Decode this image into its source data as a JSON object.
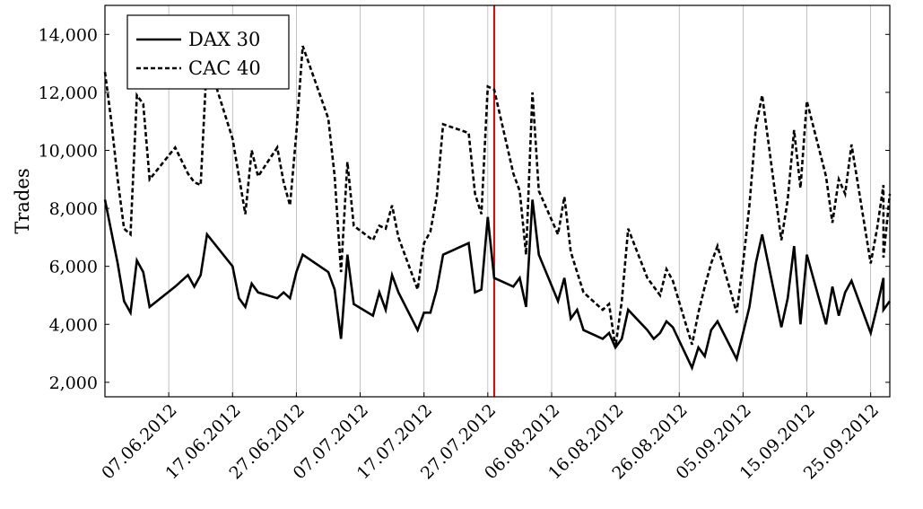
{
  "colors": {
    "dax": "#000000",
    "cac": "#000000",
    "marker": "#e00000",
    "grid": "#b3b3b3"
  },
  "chart_data": {
    "type": "line",
    "title": "",
    "xlabel": "",
    "ylabel": "Trades",
    "ylim": [
      1500,
      15000
    ],
    "yticks": [
      2000,
      4000,
      6000,
      8000,
      10000,
      12000,
      14000
    ],
    "ytick_labels": [
      "2,000",
      "4,000",
      "6,000",
      "8,000",
      "10,000",
      "12,000",
      "14,000"
    ],
    "xlim": [
      "2012-05-28",
      "2012-09-28"
    ],
    "xticks": [
      "2012-06-07",
      "2012-06-17",
      "2012-06-27",
      "2012-07-07",
      "2012-07-17",
      "2012-07-27",
      "2012-08-06",
      "2012-08-16",
      "2012-08-26",
      "2012-09-05",
      "2012-09-15",
      "2012-09-25"
    ],
    "xtick_labels": [
      "07.06.2012",
      "17.06.2012",
      "27.06.2012",
      "07.07.2012",
      "17.07.2012",
      "27.07.2012",
      "06.08.2012",
      "16.08.2012",
      "26.08.2012",
      "05.09.2012",
      "15.09.2012",
      "25.09.2012"
    ],
    "grid": "vertical",
    "legend_position": "top-left",
    "marker_line": {
      "x": "2012-07-28"
    },
    "series": [
      {
        "name": "DAX 30",
        "style": "solid",
        "points": [
          [
            "2012-05-28",
            8300
          ],
          [
            "2012-05-29",
            7200
          ],
          [
            "2012-05-30",
            6100
          ],
          [
            "2012-05-31",
            4800
          ],
          [
            "2012-06-01",
            4400
          ],
          [
            "2012-06-02",
            6200
          ],
          [
            "2012-06-03",
            5800
          ],
          [
            "2012-06-04",
            4600
          ],
          [
            "2012-06-08",
            5300
          ],
          [
            "2012-06-10",
            5700
          ],
          [
            "2012-06-11",
            5300
          ],
          [
            "2012-06-12",
            5700
          ],
          [
            "2012-06-13",
            7100
          ],
          [
            "2012-06-17",
            6000
          ],
          [
            "2012-06-18",
            4900
          ],
          [
            "2012-06-19",
            4600
          ],
          [
            "2012-06-20",
            5400
          ],
          [
            "2012-06-21",
            5100
          ],
          [
            "2012-06-24",
            4900
          ],
          [
            "2012-06-25",
            5100
          ],
          [
            "2012-06-26",
            4900
          ],
          [
            "2012-06-27",
            5800
          ],
          [
            "2012-06-28",
            6400
          ],
          [
            "2012-07-02",
            5800
          ],
          [
            "2012-07-03",
            5200
          ],
          [
            "2012-07-04",
            3500
          ],
          [
            "2012-07-05",
            6400
          ],
          [
            "2012-07-06",
            4700
          ],
          [
            "2012-07-09",
            4300
          ],
          [
            "2012-07-10",
            5100
          ],
          [
            "2012-07-11",
            4500
          ],
          [
            "2012-07-12",
            5700
          ],
          [
            "2012-07-13",
            5100
          ],
          [
            "2012-07-16",
            3800
          ],
          [
            "2012-07-17",
            4400
          ],
          [
            "2012-07-18",
            4400
          ],
          [
            "2012-07-19",
            5200
          ],
          [
            "2012-07-20",
            6400
          ],
          [
            "2012-07-24",
            6800
          ],
          [
            "2012-07-25",
            5100
          ],
          [
            "2012-07-26",
            5200
          ],
          [
            "2012-07-27",
            7700
          ],
          [
            "2012-07-28",
            5600
          ],
          [
            "2012-07-31",
            5300
          ],
          [
            "2012-08-01",
            5600
          ],
          [
            "2012-08-02",
            4600
          ],
          [
            "2012-08-03",
            8300
          ],
          [
            "2012-08-04",
            6400
          ],
          [
            "2012-08-07",
            4800
          ],
          [
            "2012-08-08",
            5600
          ],
          [
            "2012-08-09",
            4200
          ],
          [
            "2012-08-10",
            4500
          ],
          [
            "2012-08-11",
            3800
          ],
          [
            "2012-08-14",
            3500
          ],
          [
            "2012-08-15",
            3700
          ],
          [
            "2012-08-16",
            3200
          ],
          [
            "2012-08-17",
            3500
          ],
          [
            "2012-08-18",
            4500
          ],
          [
            "2012-08-21",
            3800
          ],
          [
            "2012-08-22",
            3500
          ],
          [
            "2012-08-23",
            3700
          ],
          [
            "2012-08-24",
            4100
          ],
          [
            "2012-08-25",
            3900
          ],
          [
            "2012-08-28",
            2500
          ],
          [
            "2012-08-29",
            3200
          ],
          [
            "2012-08-30",
            2900
          ],
          [
            "2012-08-31",
            3800
          ],
          [
            "2012-09-01",
            4100
          ],
          [
            "2012-09-04",
            2800
          ],
          [
            "2012-09-05",
            3700
          ],
          [
            "2012-09-06",
            4600
          ],
          [
            "2012-09-07",
            6100
          ],
          [
            "2012-09-08",
            7100
          ],
          [
            "2012-09-11",
            3900
          ],
          [
            "2012-09-12",
            4900
          ],
          [
            "2012-09-13",
            6700
          ],
          [
            "2012-09-14",
            4000
          ],
          [
            "2012-09-15",
            6400
          ],
          [
            "2012-09-18",
            4000
          ],
          [
            "2012-09-19",
            5300
          ],
          [
            "2012-09-20",
            4300
          ],
          [
            "2012-09-21",
            5100
          ],
          [
            "2012-09-22",
            5500
          ],
          [
            "2012-09-25",
            3700
          ],
          [
            "2012-09-26",
            4600
          ],
          [
            "2012-09-27",
            5600
          ],
          [
            "2012-09-27",
            4500
          ],
          [
            "2012-09-28",
            4800
          ]
        ]
      },
      {
        "name": "CAC 40",
        "style": "dashed",
        "points": [
          [
            "2012-05-28",
            12700
          ],
          [
            "2012-05-29",
            11000
          ],
          [
            "2012-05-30",
            9000
          ],
          [
            "2012-05-31",
            7300
          ],
          [
            "2012-06-01",
            7100
          ],
          [
            "2012-06-02",
            11900
          ],
          [
            "2012-06-03",
            11600
          ],
          [
            "2012-06-04",
            9000
          ],
          [
            "2012-06-08",
            10100
          ],
          [
            "2012-06-10",
            9200
          ],
          [
            "2012-06-11",
            8900
          ],
          [
            "2012-06-12",
            8800
          ],
          [
            "2012-06-13",
            13200
          ],
          [
            "2012-06-17",
            10400
          ],
          [
            "2012-06-18",
            9100
          ],
          [
            "2012-06-19",
            7800
          ],
          [
            "2012-06-20",
            10000
          ],
          [
            "2012-06-21",
            9100
          ],
          [
            "2012-06-24",
            10100
          ],
          [
            "2012-06-25",
            8900
          ],
          [
            "2012-06-26",
            8100
          ],
          [
            "2012-06-27",
            10600
          ],
          [
            "2012-06-28",
            13600
          ],
          [
            "2012-07-02",
            11100
          ],
          [
            "2012-07-03",
            9100
          ],
          [
            "2012-07-04",
            5800
          ],
          [
            "2012-07-05",
            9600
          ],
          [
            "2012-07-06",
            7400
          ],
          [
            "2012-07-09",
            6900
          ],
          [
            "2012-07-10",
            7400
          ],
          [
            "2012-07-11",
            7300
          ],
          [
            "2012-07-12",
            8100
          ],
          [
            "2012-07-13",
            7000
          ],
          [
            "2012-07-16",
            5200
          ],
          [
            "2012-07-17",
            6800
          ],
          [
            "2012-07-18",
            7200
          ],
          [
            "2012-07-19",
            8400
          ],
          [
            "2012-07-20",
            10900
          ],
          [
            "2012-07-24",
            10600
          ],
          [
            "2012-07-25",
            8500
          ],
          [
            "2012-07-26",
            7800
          ],
          [
            "2012-07-27",
            12200
          ],
          [
            "2012-07-28",
            12100
          ],
          [
            "2012-07-31",
            9200
          ],
          [
            "2012-08-01",
            8600
          ],
          [
            "2012-08-02",
            6400
          ],
          [
            "2012-08-03",
            12000
          ],
          [
            "2012-08-04",
            8600
          ],
          [
            "2012-08-07",
            7100
          ],
          [
            "2012-08-08",
            8400
          ],
          [
            "2012-08-09",
            6500
          ],
          [
            "2012-08-10",
            5800
          ],
          [
            "2012-08-11",
            5100
          ],
          [
            "2012-08-14",
            4500
          ],
          [
            "2012-08-15",
            4700
          ],
          [
            "2012-08-16",
            3200
          ],
          [
            "2012-08-17",
            4800
          ],
          [
            "2012-08-18",
            7300
          ],
          [
            "2012-08-21",
            5600
          ],
          [
            "2012-08-22",
            5300
          ],
          [
            "2012-08-23",
            5000
          ],
          [
            "2012-08-24",
            5900
          ],
          [
            "2012-08-25",
            5500
          ],
          [
            "2012-08-28",
            3300
          ],
          [
            "2012-08-29",
            4400
          ],
          [
            "2012-08-30",
            5300
          ],
          [
            "2012-08-31",
            6100
          ],
          [
            "2012-09-01",
            6700
          ],
          [
            "2012-09-04",
            4400
          ],
          [
            "2012-09-05",
            6100
          ],
          [
            "2012-09-06",
            8100
          ],
          [
            "2012-09-07",
            10800
          ],
          [
            "2012-09-08",
            11900
          ],
          [
            "2012-09-11",
            6900
          ],
          [
            "2012-09-12",
            8300
          ],
          [
            "2012-09-13",
            10700
          ],
          [
            "2012-09-14",
            8700
          ],
          [
            "2012-09-15",
            11700
          ],
          [
            "2012-09-18",
            9100
          ],
          [
            "2012-09-19",
            7500
          ],
          [
            "2012-09-20",
            9000
          ],
          [
            "2012-09-21",
            8500
          ],
          [
            "2012-09-22",
            10200
          ],
          [
            "2012-09-25",
            6100
          ],
          [
            "2012-09-26",
            7300
          ],
          [
            "2012-09-27",
            8800
          ],
          [
            "2012-09-27",
            6300
          ],
          [
            "2012-09-28",
            8500
          ]
        ]
      }
    ]
  }
}
